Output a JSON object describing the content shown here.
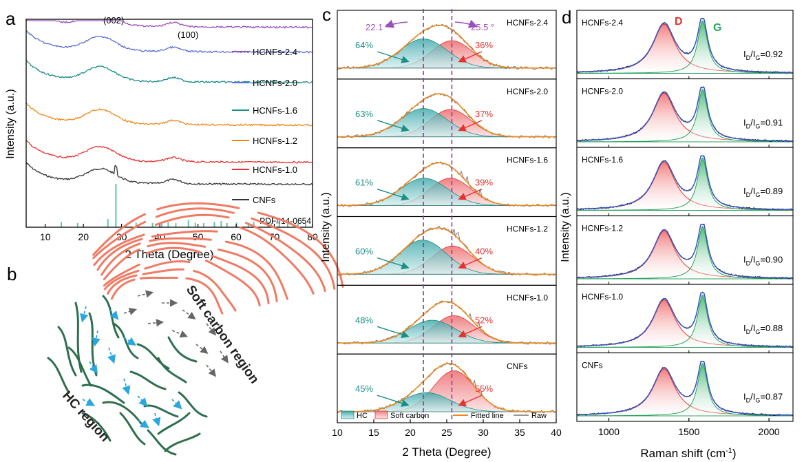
{
  "colors": {
    "xrd": [
      "#333333",
      "#e8312f",
      "#f0891c",
      "#1b8f85",
      "#5b6fd6",
      "#9b4fbd"
    ],
    "hc": "#3aa6a8",
    "soft": "#ef7b7d",
    "fit": "#f0891c",
    "raw": "#777777",
    "dash": "#8e3aa3",
    "d_band": "#e8312f",
    "g_band": "#27a35f",
    "raman_fit": "#3b56c4",
    "green_region": "#2e6f4e",
    "red_region": "#f07a63",
    "arrow_blue": "#2aa6e0",
    "arrow_grey": "#666666"
  },
  "panel_labels": [
    "a",
    "b",
    "c",
    "d"
  ],
  "chart_data": [
    {
      "id": "a",
      "type": "line",
      "xlabel": "2 Theta (Degree)",
      "ylabel": "Intensity (a.u.)",
      "xlim": [
        5,
        80
      ],
      "xticks": [
        "10",
        "20",
        "30",
        "40",
        "50",
        "60",
        "70",
        "80"
      ],
      "peak_labels": [
        {
          "text": "(002)",
          "x": 24
        },
        {
          "text": "(100)",
          "x": 44
        }
      ],
      "series": [
        {
          "name": "CNFs"
        },
        {
          "name": "HCNFs-1.0"
        },
        {
          "name": "HCNFs-1.2"
        },
        {
          "name": "HCNFs-1.6"
        },
        {
          "name": "HCNFs-2.0"
        },
        {
          "name": "HCNFs-2.4"
        }
      ],
      "reference": {
        "label": "PDF#14-0654",
        "sticks": [
          [
            14.2,
            0.08
          ],
          [
            18.5,
            0.05
          ],
          [
            26.4,
            0.15
          ],
          [
            28.5,
            1.0
          ],
          [
            33.8,
            0.06
          ],
          [
            38.1,
            0.05
          ],
          [
            40.5,
            0.05
          ],
          [
            42.2,
            0.07
          ],
          [
            44.2,
            0.05
          ],
          [
            47.5,
            0.12
          ],
          [
            49.3,
            0.06
          ],
          [
            51.5,
            0.05
          ],
          [
            54.3,
            0.08
          ],
          [
            56.1,
            0.1
          ],
          [
            57.6,
            0.05
          ],
          [
            60.1,
            0.06
          ],
          [
            63.2,
            0.04
          ],
          [
            64.6,
            0.08
          ],
          [
            68.3,
            0.09
          ],
          [
            69.2,
            0.05
          ],
          [
            71.3,
            0.06
          ],
          [
            73.5,
            0.04
          ],
          [
            76.2,
            0.05
          ],
          [
            78.2,
            0.04
          ]
        ]
      }
    },
    {
      "id": "c",
      "type": "area",
      "xlabel": "2 Theta (Degree)",
      "ylabel": "Intensity (a.u.)",
      "xlim": [
        10,
        40
      ],
      "xticks": [
        "10",
        "15",
        "20",
        "25",
        "30",
        "35",
        "40"
      ],
      "reference_lines": [
        21.8,
        25.7
      ],
      "angle_labels": [
        "22.1 °",
        "25.5 °"
      ],
      "legend": [
        "HC",
        "Soft carbon",
        "Fitted line",
        "Raw"
      ],
      "panels": [
        {
          "name": "HCNFs-2.4",
          "hc_percent": "64%",
          "soft_percent": "36%",
          "hc_center": 21.8,
          "soft_center": 25.7,
          "hc_amp": 0.64,
          "soft_amp": 0.6
        },
        {
          "name": "HCNFs-2.0",
          "hc_percent": "63%",
          "soft_percent": "37%",
          "hc_center": 21.8,
          "soft_center": 25.5,
          "hc_amp": 0.62,
          "soft_amp": 0.6
        },
        {
          "name": "HCNFs-1.6",
          "hc_percent": "61%",
          "soft_percent": "39%",
          "hc_center": 21.9,
          "soft_center": 25.5,
          "hc_amp": 0.6,
          "soft_amp": 0.6
        },
        {
          "name": "HCNFs-1.2",
          "hc_percent": "60%",
          "soft_percent": "40%",
          "hc_center": 21.7,
          "soft_center": 25.8,
          "hc_amp": 0.75,
          "soft_amp": 0.62
        },
        {
          "name": "HCNFs-1.0",
          "hc_percent": "48%",
          "soft_percent": "52%",
          "hc_center": 23.0,
          "soft_center": 26.0,
          "hc_amp": 0.5,
          "soft_amp": 0.6
        },
        {
          "name": "CNFs",
          "hc_percent": "45%",
          "soft_percent": "55%",
          "hc_center": 22.2,
          "soft_center": 26.0,
          "hc_amp": 0.42,
          "soft_amp": 0.9
        }
      ]
    },
    {
      "id": "d",
      "type": "area",
      "xlabel": "Raman shift (cm",
      "xlabel_sup": "-1",
      "xlabel_end": ")",
      "ylabel": "Intensity (a.u.)",
      "xlim": [
        800,
        2150
      ],
      "xticks": [
        "1000",
        "1500",
        "2000"
      ],
      "band_labels": [
        "D",
        "G"
      ],
      "panels": [
        {
          "name": "HCNFs-2.4",
          "ratio": "=0.92"
        },
        {
          "name": "HCNFs-2.0",
          "ratio": "=0.91"
        },
        {
          "name": "HCNFs-1.6",
          "ratio": "=0.89"
        },
        {
          "name": "HCNFs-1.2",
          "ratio": "=0.90"
        },
        {
          "name": "HCNFs-1.0",
          "ratio": "=0.88"
        },
        {
          "name": "CNFs",
          "ratio": "=0.87"
        }
      ],
      "ratio_prefix": "I",
      "ratio_sub_d": "D",
      "ratio_mid": "/I",
      "ratio_sub_g": "G"
    }
  ],
  "schematic": {
    "soft_region_label": "Soft carbon region",
    "hc_region_label": "HC region"
  }
}
